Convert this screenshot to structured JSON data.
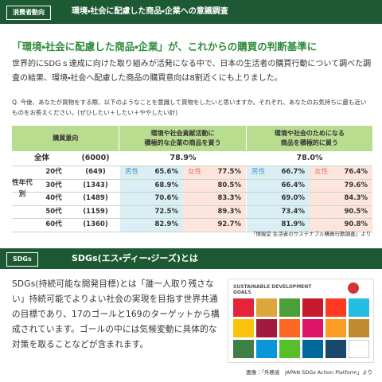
{
  "header": {
    "tag": "消費者動向",
    "title": "環境・社会に配慮した商品・企業への意識調査"
  },
  "headline": "「環境・社会に配慮した商品・企業」が、これからの購買の判断基準に",
  "intro": "世界的にSDGｓ達成に向けた取り組みが活発になる中で、日本の生活者の購買行動について調べた調査の結果、環境・社会へ配慮した商品の購買意向は8割近くにも上りました。",
  "question": "Q. 今後、あなたが買物をする際、以下のようなことを意識して買物をしたいと思いますか。それぞれ、あなたのお気持ちに最も近いものをお答えください。(ぜひしたい＋したい＋ややしたい計)",
  "table": {
    "corner": "購買意向",
    "columns": [
      [
        "環境や社会貢献活動に",
        "積極的な企業の商品を買う"
      ],
      [
        "環境や社会のためになる",
        "商品を積極的に買う"
      ]
    ],
    "total": {
      "label": "全体",
      "n": "(6000)",
      "values": [
        "78.9%",
        "78.0%"
      ]
    },
    "group_label": "性年代別",
    "male": "男性",
    "female": "女性",
    "rows": [
      {
        "age": "20代",
        "n": "(649)",
        "values": [
          "65.6%",
          "77.5%",
          "66.7%",
          "76.4%"
        ]
      },
      {
        "age": "30代",
        "n": "(1343)",
        "values": [
          "68.9%",
          "80.5%",
          "66.4%",
          "79.6%"
        ]
      },
      {
        "age": "40代",
        "n": "(1489)",
        "values": [
          "70.6%",
          "83.3%",
          "69.0%",
          "84.3%"
        ]
      },
      {
        "age": "50代",
        "n": "(1159)",
        "values": [
          "72.5%",
          "89.3%",
          "73.4%",
          "90.5%"
        ]
      },
      {
        "age": "60代",
        "n": "(1360)",
        "values": [
          "82.9%",
          "92.7%",
          "81.9%",
          "90.8%"
        ]
      }
    ]
  },
  "source": "「博報堂 生活者のサステナブル購買行動調査」より",
  "section2": {
    "tag": "SDGs",
    "title": "SDGs(エス・ディー・ジーズ)とは",
    "body": "SDGs(持続可能な開発目標)とは「誰一人取り残さない」持続可能でよりよい社会の実現を目指す世界共通の目標であり、17のゴールと169のターゲットから構成されています。ゴールの中には気候変動に具体的な対策を取ることなどが含まれます。",
    "image_title": "SUSTAINABLE DEVELOPMENT GOALS",
    "caption": "画像：「外務省　JAPAN SDGs Action Platform」より"
  }
}
